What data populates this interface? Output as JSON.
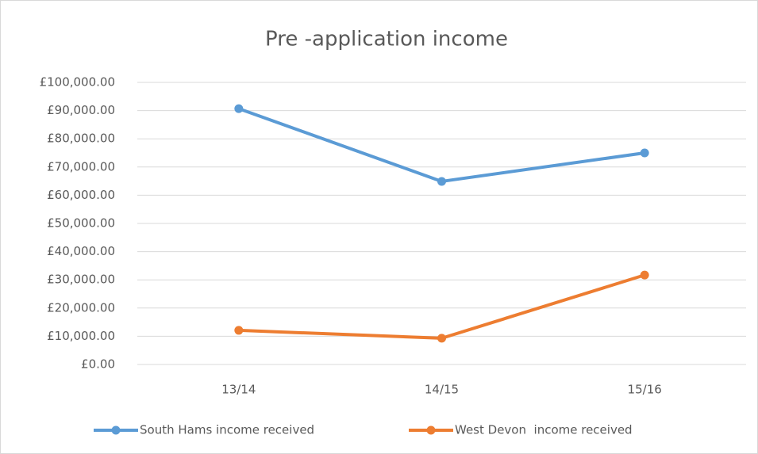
{
  "chart_data": {
    "type": "line",
    "title": "Pre -application income",
    "categories": [
      "13/14",
      "14/15",
      "15/16"
    ],
    "series": [
      {
        "name": "South Hams income received",
        "color": "#5b9bd5",
        "values": [
          90700,
          64900,
          75000
        ]
      },
      {
        "name": "West Devon  income received",
        "color": "#ed7d31",
        "values": [
          12100,
          9300,
          31700
        ]
      }
    ],
    "ylim": [
      0,
      100000
    ],
    "yticks": [
      {
        "value": 0,
        "label": "£0.00"
      },
      {
        "value": 10000,
        "label": "£10,000.00"
      },
      {
        "value": 20000,
        "label": "£20,000.00"
      },
      {
        "value": 30000,
        "label": "£30,000.00"
      },
      {
        "value": 40000,
        "label": "£40,000.00"
      },
      {
        "value": 50000,
        "label": "£50,000.00"
      },
      {
        "value": 60000,
        "label": "£60,000.00"
      },
      {
        "value": 70000,
        "label": "£70,000.00"
      },
      {
        "value": 80000,
        "label": "£80,000.00"
      },
      {
        "value": 90000,
        "label": "£90,000.00"
      },
      {
        "value": 100000,
        "label": "£100,000.00"
      }
    ],
    "grid": true,
    "legend": "bottom"
  }
}
